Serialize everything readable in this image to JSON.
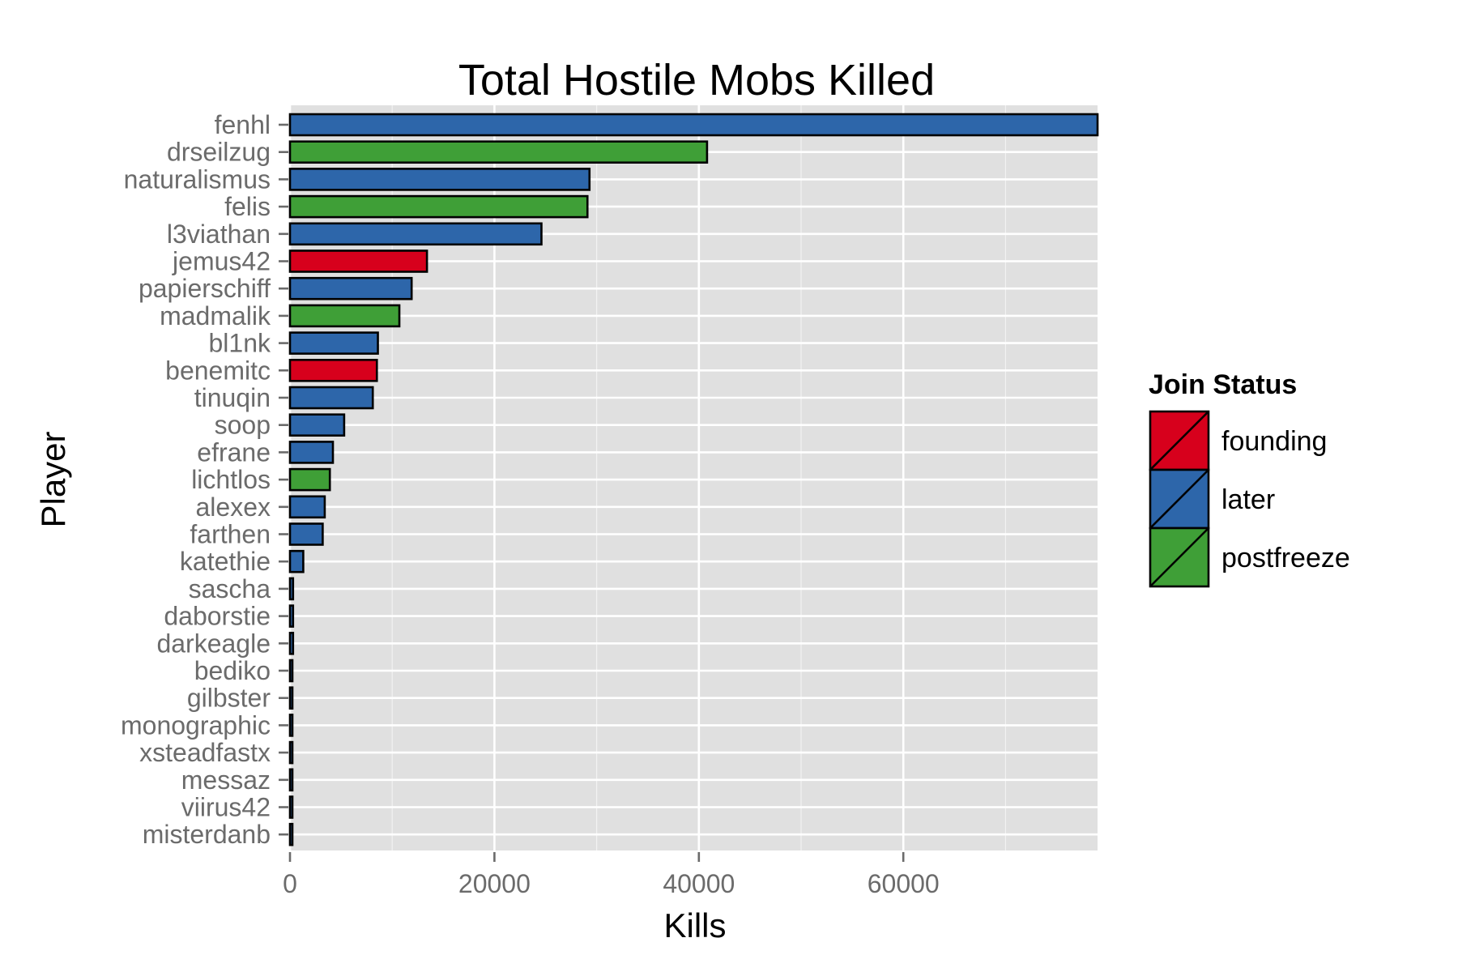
{
  "chart_data": {
    "type": "bar",
    "orientation": "horizontal",
    "title": "Total Hostile Mobs Killed",
    "xlabel": "Kills",
    "ylabel": "Player",
    "xlim": [
      0,
      79000
    ],
    "x_ticks": [
      0,
      20000,
      40000,
      60000
    ],
    "x_tick_labels": [
      "0",
      "20000",
      "40000",
      "60000"
    ],
    "grid": true,
    "legend": {
      "title": "Join Status",
      "placement": "right",
      "entries": [
        {
          "label": "founding",
          "color": "#d7001c"
        },
        {
          "label": "later",
          "color": "#2d66aa"
        },
        {
          "label": "postfreeze",
          "color": "#3f9f37"
        }
      ]
    },
    "bars": [
      {
        "player": "fenhl",
        "kills": 79000,
        "status": "later"
      },
      {
        "player": "drseilzug",
        "kills": 40800,
        "status": "postfreeze"
      },
      {
        "player": "naturalismus",
        "kills": 29300,
        "status": "later"
      },
      {
        "player": "felis",
        "kills": 29100,
        "status": "postfreeze"
      },
      {
        "player": "l3viathan",
        "kills": 24600,
        "status": "later"
      },
      {
        "player": "jemus42",
        "kills": 13400,
        "status": "founding"
      },
      {
        "player": "papierschiff",
        "kills": 11900,
        "status": "later"
      },
      {
        "player": "madmalik",
        "kills": 10700,
        "status": "postfreeze"
      },
      {
        "player": "bl1nk",
        "kills": 8600,
        "status": "later"
      },
      {
        "player": "benemitc",
        "kills": 8500,
        "status": "founding"
      },
      {
        "player": "tinuqin",
        "kills": 8100,
        "status": "later"
      },
      {
        "player": "soop",
        "kills": 5300,
        "status": "later"
      },
      {
        "player": "efrane",
        "kills": 4200,
        "status": "later"
      },
      {
        "player": "lichtlos",
        "kills": 3900,
        "status": "postfreeze"
      },
      {
        "player": "alexex",
        "kills": 3400,
        "status": "later"
      },
      {
        "player": "farthen",
        "kills": 3200,
        "status": "later"
      },
      {
        "player": "katethie",
        "kills": 1300,
        "status": "later"
      },
      {
        "player": "sascha",
        "kills": 300,
        "status": "later"
      },
      {
        "player": "daborstie",
        "kills": 300,
        "status": "later"
      },
      {
        "player": "darkeagle",
        "kills": 300,
        "status": "later"
      },
      {
        "player": "bediko",
        "kills": 100,
        "status": "later"
      },
      {
        "player": "gilbster",
        "kills": 100,
        "status": "later"
      },
      {
        "player": "monographic",
        "kills": 100,
        "status": "later"
      },
      {
        "player": "xsteadfastx",
        "kills": 100,
        "status": "later"
      },
      {
        "player": "messaz",
        "kills": 100,
        "status": "later"
      },
      {
        "player": "viirus42",
        "kills": 100,
        "status": "later"
      },
      {
        "player": "misterdanb",
        "kills": 100,
        "status": "later"
      }
    ]
  }
}
